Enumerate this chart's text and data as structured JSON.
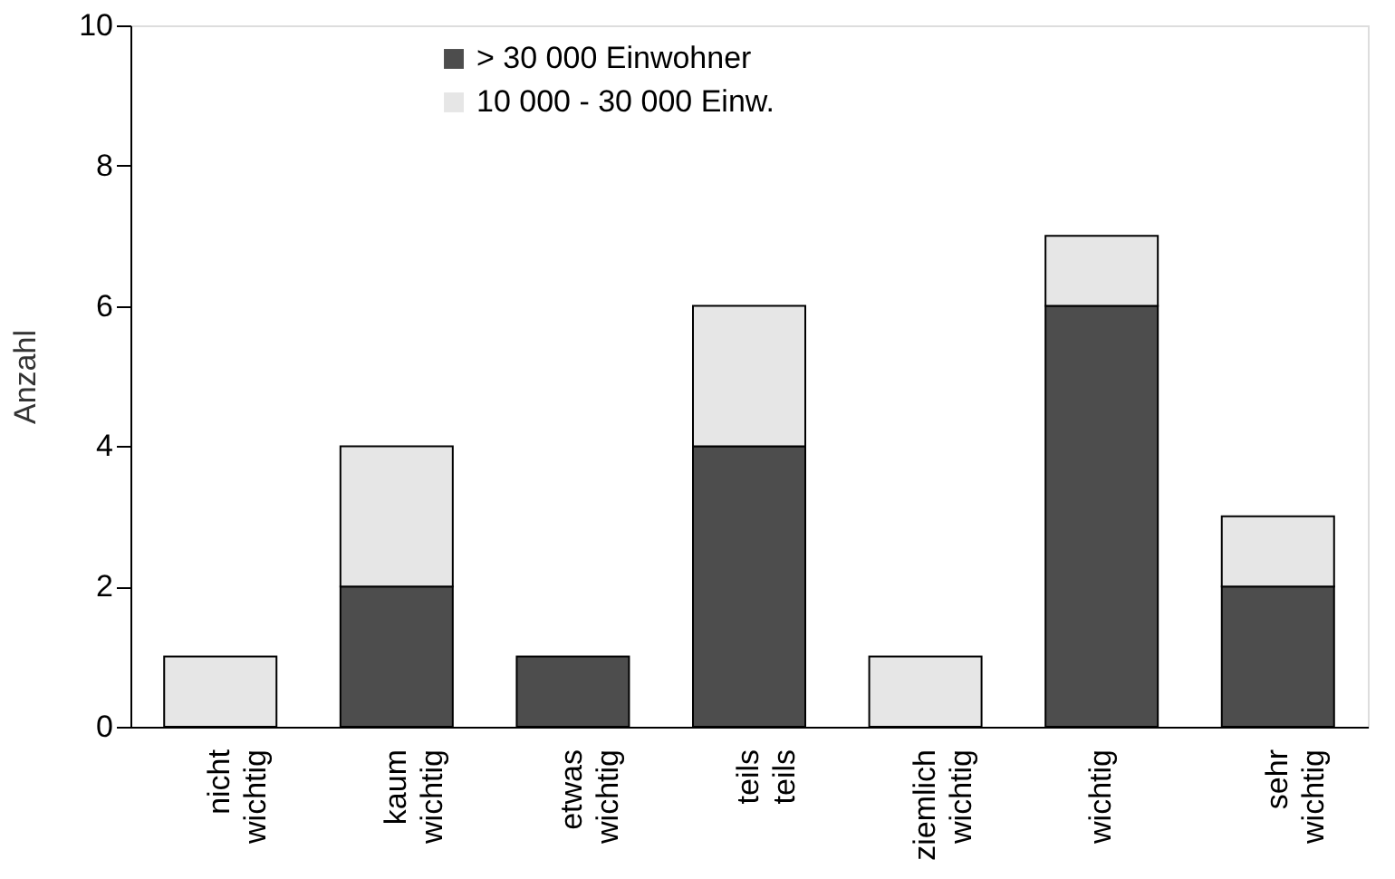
{
  "chart_data": {
    "type": "bar",
    "stacked": true,
    "ylabel": "Anzahl",
    "categories": [
      "nicht wichtig",
      "kaum wichtig",
      "etwas wichtig",
      "teils teils",
      "ziemlich wichtig",
      "wichtig",
      "sehr wichtig"
    ],
    "series": [
      {
        "name": "> 30 000 Einwohner",
        "color": "#4d4d4d",
        "values": [
          0,
          2,
          1,
          4,
          0,
          6,
          2
        ]
      },
      {
        "name": "10 000 - 30 000 Einw.",
        "color": "#e6e6e6",
        "values": [
          1,
          2,
          0,
          2,
          1,
          1,
          1
        ]
      }
    ],
    "ylim": [
      0,
      10
    ],
    "yticks": [
      0,
      2,
      4,
      6,
      8,
      10
    ],
    "grid": false,
    "legend": "top"
  }
}
